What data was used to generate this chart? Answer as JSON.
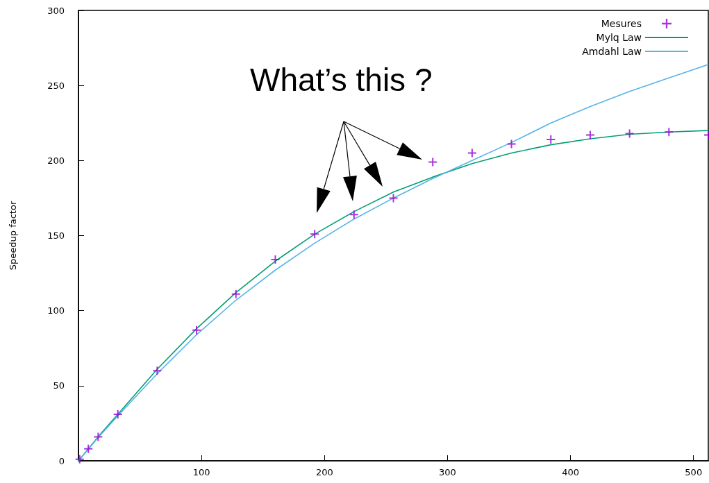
{
  "chart_data": {
    "type": "scatter",
    "ylabel": "Speedup factor",
    "annotations": [
      "What’s this ?"
    ],
    "x": [
      1,
      8,
      16,
      32,
      64,
      96,
      128,
      160,
      192,
      224,
      256,
      288,
      320,
      352,
      384,
      416,
      448,
      480,
      512
    ],
    "series": [
      {
        "name": "Mesures",
        "color": "#9400d3",
        "marker": "cross",
        "values": [
          1,
          8,
          16,
          31,
          60,
          87,
          111,
          134,
          151,
          164,
          175,
          199,
          205,
          211,
          214,
          217,
          218,
          219,
          217
        ]
      },
      {
        "name": "Mylq Law",
        "color": "#009e73",
        "type": "line",
        "marker": "none",
        "x": [
          0,
          16,
          32,
          64,
          96,
          128,
          160,
          192,
          224,
          256,
          288,
          320,
          352,
          384,
          416,
          448,
          480,
          512
        ],
        "values": [
          0,
          16,
          31,
          61,
          88,
          112,
          133,
          151,
          166,
          179,
          189,
          198,
          205,
          210.5,
          214.5,
          217.5,
          219,
          220
        ]
      },
      {
        "name": "Amdahl Law",
        "color": "#56b4e9",
        "type": "line",
        "marker": "none",
        "x": [
          0,
          16,
          32,
          64,
          96,
          128,
          160,
          192,
          224,
          256,
          288,
          320,
          352,
          384,
          416,
          448,
          480,
          512
        ],
        "values": [
          0,
          15.5,
          30,
          58,
          84,
          107,
          127,
          145,
          161,
          175,
          188,
          200,
          212,
          225,
          236,
          246,
          255,
          264
        ]
      }
    ],
    "xlim": [
      0,
      512
    ],
    "xticks": [
      100,
      200,
      300,
      400,
      500
    ],
    "ylim": [
      0,
      300
    ],
    "yticks": [
      0,
      50,
      100,
      150,
      200,
      250,
      300
    ],
    "grid": false,
    "legend": "top right"
  }
}
